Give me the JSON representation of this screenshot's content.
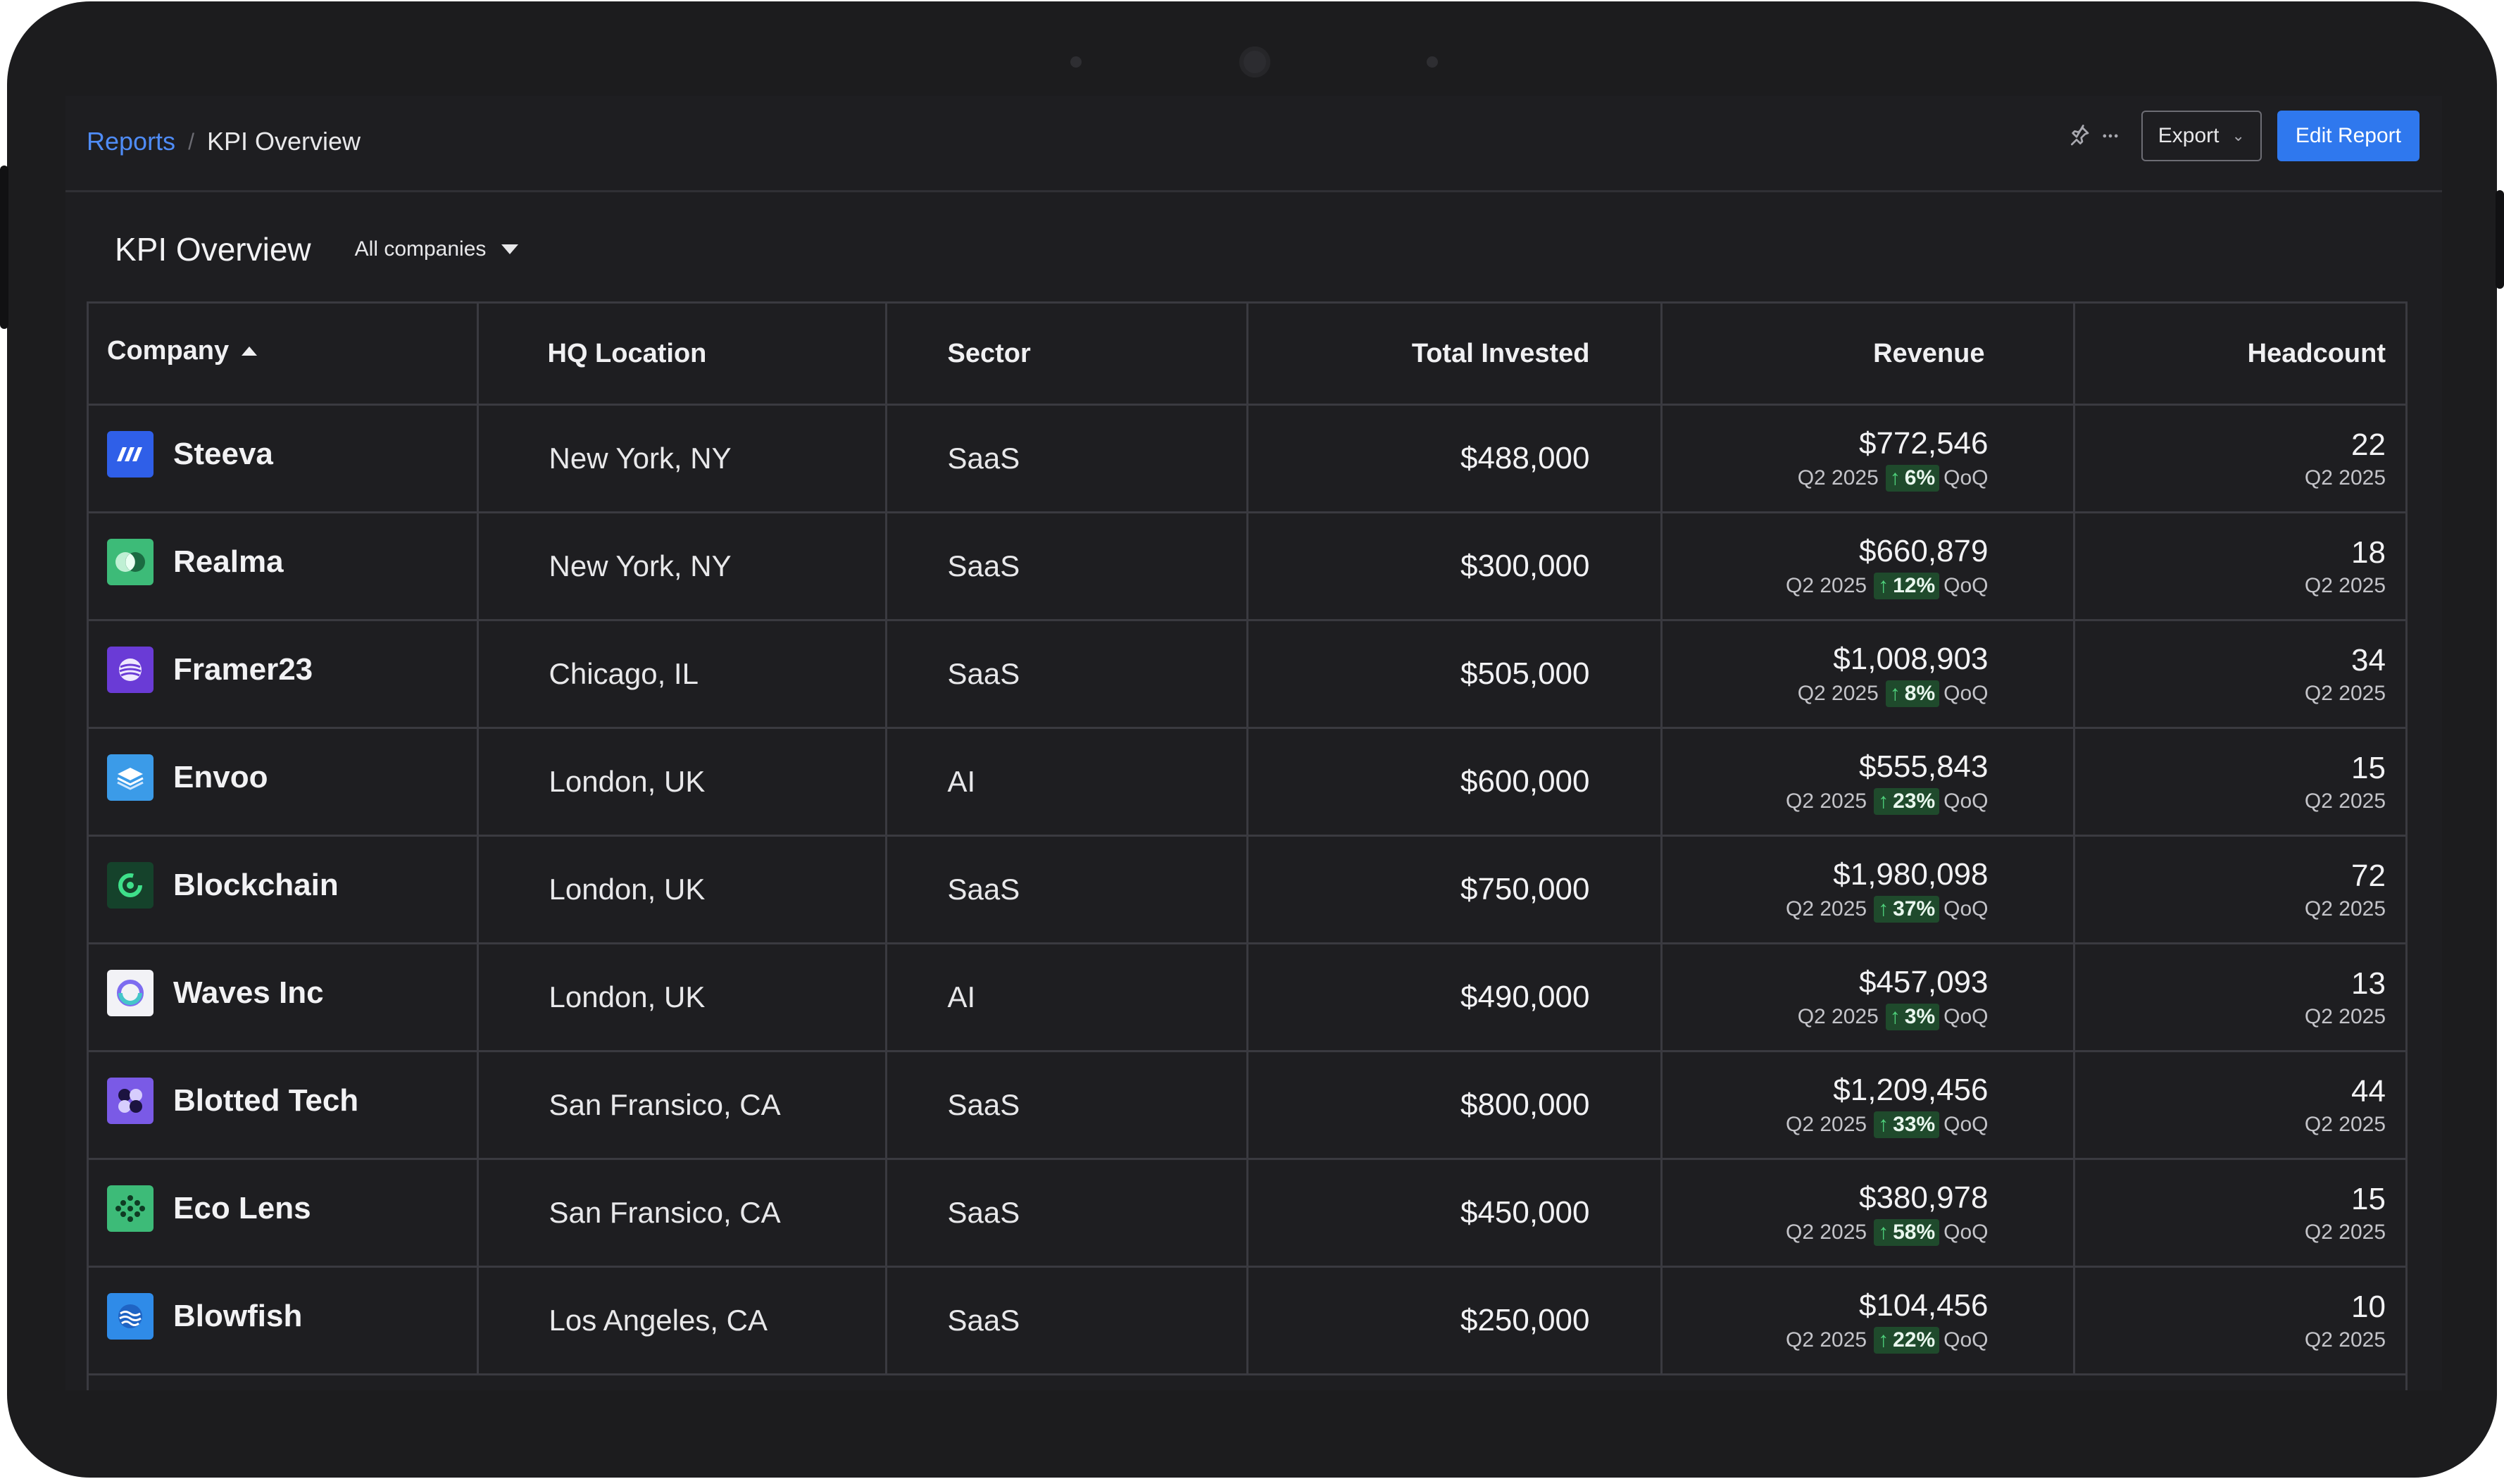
{
  "breadcrumb": {
    "parent": "Reports",
    "separator": "/",
    "current": "KPI Overview"
  },
  "toolbar": {
    "export_label": "Export",
    "edit_label": "Edit Report",
    "pin_icon": "pin-icon",
    "more_icon": "more-icon"
  },
  "page": {
    "title": "KPI Overview",
    "filter_label": "All companies"
  },
  "table": {
    "columns": [
      "Company",
      "HQ Location",
      "Sector",
      "Total Invested",
      "Revenue",
      "Headcount"
    ],
    "rows": [
      {
        "company": "Steeva",
        "logo": "steeva-logo",
        "location": "New York, NY",
        "sector": "SaaS",
        "invested": "$488,000",
        "revenue": "$772,546",
        "rev_period": "Q2 2025",
        "rev_change": "6%",
        "rev_change_label": "QoQ",
        "headcount": "22",
        "hc_period": "Q2 2025"
      },
      {
        "company": "Realma",
        "logo": "realma-logo",
        "location": "New York, NY",
        "sector": "SaaS",
        "invested": "$300,000",
        "revenue": "$660,879",
        "rev_period": "Q2 2025",
        "rev_change": "12%",
        "rev_change_label": "QoQ",
        "headcount": "18",
        "hc_period": "Q2 2025"
      },
      {
        "company": "Framer23",
        "logo": "framer23-logo",
        "location": "Chicago, IL",
        "sector": "SaaS",
        "invested": "$505,000",
        "revenue": "$1,008,903",
        "rev_period": "Q2 2025",
        "rev_change": "8%",
        "rev_change_label": "QoQ",
        "headcount": "34",
        "hc_period": "Q2 2025"
      },
      {
        "company": "Envoo",
        "logo": "envoo-logo",
        "location": "London, UK",
        "sector": "AI",
        "invested": "$600,000",
        "revenue": "$555,843",
        "rev_period": "Q2 2025",
        "rev_change": "23%",
        "rev_change_label": "QoQ",
        "headcount": "15",
        "hc_period": "Q2 2025"
      },
      {
        "company": "Blockchain",
        "logo": "blockchain-logo",
        "location": "London, UK",
        "sector": "SaaS",
        "invested": "$750,000",
        "revenue": "$1,980,098",
        "rev_period": "Q2 2025",
        "rev_change": "37%",
        "rev_change_label": "QoQ",
        "headcount": "72",
        "hc_period": "Q2 2025"
      },
      {
        "company": "Waves Inc",
        "logo": "waves-logo",
        "location": "London, UK",
        "sector": "AI",
        "invested": "$490,000",
        "revenue": "$457,093",
        "rev_period": "Q2 2025",
        "rev_change": "3%",
        "rev_change_label": "QoQ",
        "headcount": "13",
        "hc_period": "Q2 2025"
      },
      {
        "company": "Blotted Tech",
        "logo": "blotted-logo",
        "location": "San Fransico, CA",
        "sector": "SaaS",
        "invested": "$800,000",
        "revenue": "$1,209,456",
        "rev_period": "Q2 2025",
        "rev_change": "33%",
        "rev_change_label": "QoQ",
        "headcount": "44",
        "hc_period": "Q2 2025"
      },
      {
        "company": "Eco Lens",
        "logo": "ecolens-logo",
        "location": "San Fransico, CA",
        "sector": "SaaS",
        "invested": "$450,000",
        "revenue": "$380,978",
        "rev_period": "Q2 2025",
        "rev_change": "58%",
        "rev_change_label": "QoQ",
        "headcount": "15",
        "hc_period": "Q2 2025"
      },
      {
        "company": "Blowfish",
        "logo": "blowfish-logo",
        "location": "Los Angeles, CA",
        "sector": "SaaS",
        "invested": "$250,000",
        "revenue": "$104,456",
        "rev_period": "Q2 2025",
        "rev_change": "22%",
        "rev_change_label": "QoQ",
        "headcount": "10",
        "hc_period": "Q2 2025"
      }
    ]
  },
  "colors": {
    "accent": "#2f78ee",
    "link": "#4f8cf7",
    "positive_pill": "#1f4a2c",
    "positive_arrow": "#4fd27c",
    "background": "#1e1e21"
  }
}
